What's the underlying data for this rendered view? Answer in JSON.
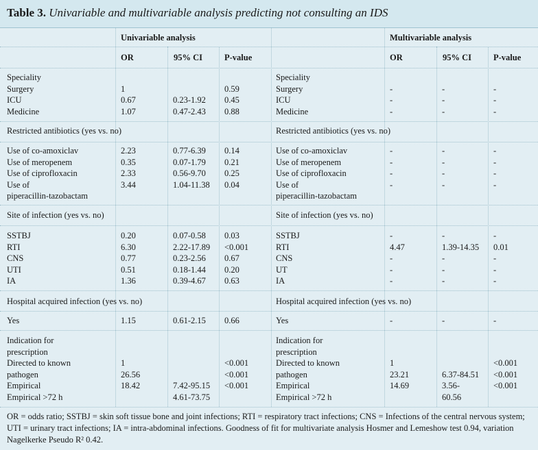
{
  "title": {
    "label": "Table 3.",
    "text": "Univariable and multivariable analysis predicting not consulting an IDS"
  },
  "group_headers": {
    "univariable": "Univariable analysis",
    "multivariable": "Multivariable analysis"
  },
  "col_headers": {
    "or": "OR",
    "ci": "95% CI",
    "p": "P-value"
  },
  "uni": {
    "speciality": {
      "label": "Speciality",
      "rows": [
        "Surgery",
        "ICU",
        "Medicine"
      ],
      "or": [
        "1",
        "0.67",
        "1.07"
      ],
      "ci": [
        "",
        "0.23-1.92",
        "0.47-2.43"
      ],
      "p": [
        "0.59",
        "0.45",
        "0.88"
      ]
    },
    "antibiotics": {
      "label": "Restricted antibiotics (yes vs. no)",
      "rows": [
        "Use of co-amoxiclav",
        "Use of meropenem",
        "Use of ciprofloxacin",
        "Use of",
        "piperacillin-tazobactam"
      ],
      "or": [
        "2.23",
        "0.35",
        "2.33",
        "3.44"
      ],
      "ci": [
        "0.77-6.39",
        "0.07-1.79",
        "0.56-9.70",
        "1.04-11.38"
      ],
      "p": [
        "0.14",
        "0.21",
        "0.25",
        "0.04"
      ]
    },
    "site": {
      "label": "Site of infection (yes vs. no)",
      "rows": [
        "SSTBJ",
        "RTI",
        "CNS",
        "UTI",
        "IA"
      ],
      "or": [
        "0.20",
        "6.30",
        "0.77",
        "0.51",
        "1.36"
      ],
      "ci": [
        "0.07-0.58",
        "2.22-17.89",
        "0.23-2.56",
        "0.18-1.44",
        "0.39-4.67"
      ],
      "p": [
        "0.03",
        "<0.001",
        "0.67",
        "0.20",
        "0.63"
      ]
    },
    "hospital": {
      "label": "Hospital acquired infection (yes vs. no)",
      "rows": [
        "Yes"
      ],
      "or": [
        "1.15"
      ],
      "ci": [
        "0.61-2.15"
      ],
      "p": [
        "0.66"
      ]
    },
    "indication": {
      "rows": [
        "Indication for",
        "prescription",
        "Directed to known",
        "pathogen",
        "Empirical",
        "Empirical >72 h"
      ],
      "or": [
        "1",
        "26.56",
        "18.42"
      ],
      "ci": [
        "7.42-95.15",
        "4.61-73.75"
      ],
      "p": [
        "<0.001",
        "<0.001",
        "<0.001"
      ]
    }
  },
  "multi": {
    "speciality": {
      "label": "Speciality",
      "rows": [
        "Surgery",
        "ICU",
        "Medicine"
      ],
      "or": [
        "-",
        "-",
        "-"
      ],
      "ci": [
        "-",
        "-",
        "-"
      ],
      "p": [
        "-",
        "-",
        "-"
      ]
    },
    "antibiotics": {
      "label": "Restricted antibiotics (yes vs. no)",
      "rows": [
        "Use of co-amoxiclav",
        "Use of meropenem",
        "Use of ciprofloxacin",
        "Use of",
        "piperacillin-tazobactam"
      ],
      "or": [
        "-",
        "-",
        "-",
        "-"
      ],
      "ci": [
        "-",
        "-",
        "-",
        "-"
      ],
      "p": [
        "-",
        "-",
        "-",
        "-"
      ]
    },
    "site": {
      "label": "Site of infection (yes vs. no)",
      "rows": [
        "SSTBJ",
        "RTI",
        "CNS",
        "UT",
        "IA"
      ],
      "or": [
        "-",
        "4.47",
        "-",
        "-",
        "-"
      ],
      "ci": [
        "-",
        "1.39-14.35",
        "-",
        "-",
        "-"
      ],
      "p": [
        "-",
        "0.01",
        "-",
        "-",
        "-"
      ]
    },
    "hospital": {
      "label": "Hospital acquired infection (yes vs. no)",
      "rows": [
        "Yes"
      ],
      "or": [
        "-"
      ],
      "ci": [
        "-"
      ],
      "p": [
        "-"
      ]
    },
    "indication": {
      "rows": [
        "Indication for",
        "prescription",
        "Directed to known",
        "pathogen",
        "Empirical",
        "Empirical >72 h"
      ],
      "or": [
        "1",
        "23.21",
        "14.69"
      ],
      "ci": [
        "6.37-84.51",
        "3.56-",
        "60.56"
      ],
      "p": [
        "<0.001",
        "<0.001",
        "<0.001"
      ]
    }
  },
  "footnote": "OR = odds ratio; SSTBJ = skin soft tissue bone and joint infections; RTI = respiratory tract infections; CNS = Infections of the central nervous system; UTI = urinary tract infections; IA = intra-abdominal infections. Goodness of fit for multivariate analysis Hosmer and Lemeshow test 0.94, variation Nagelkerke Pseudo R² 0.42."
}
